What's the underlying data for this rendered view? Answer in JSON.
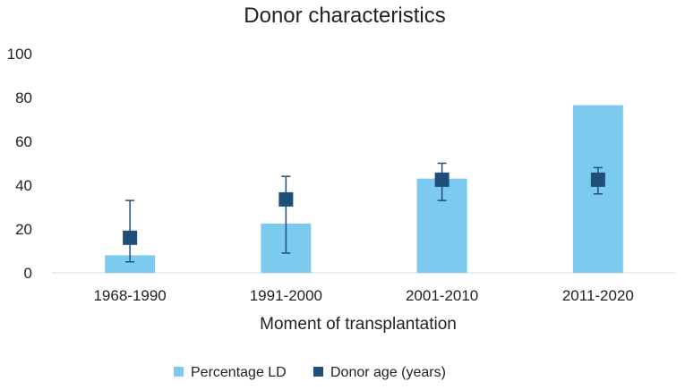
{
  "chart_data": {
    "type": "bar",
    "title": "Donor characteristics",
    "xlabel": "Moment of transplantation",
    "ylabel": "",
    "ylim": [
      0,
      100
    ],
    "yticks": [
      0,
      20,
      40,
      60,
      80,
      100
    ],
    "grid": false,
    "categories": [
      "1968-1990",
      "1991-2000",
      "2001-2010",
      "2011-2020"
    ],
    "series": [
      {
        "name": "Percentage LD",
        "kind": "bar",
        "color": "#7ccbef",
        "values": [
          8,
          22.5,
          43,
          76.5
        ]
      },
      {
        "name": "Donor age (years)",
        "kind": "point-with-range",
        "color": "#1f4e79",
        "values": [
          16,
          33.5,
          42.5,
          42.5
        ],
        "error_low": [
          5,
          9,
          33,
          36
        ],
        "error_high": [
          33,
          44,
          50,
          48
        ]
      }
    ],
    "legend_position": "bottom-center"
  }
}
